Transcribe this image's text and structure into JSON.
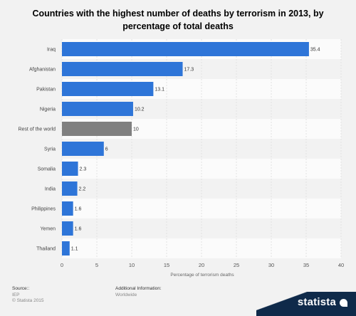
{
  "chart_data": {
    "type": "bar",
    "orientation": "horizontal",
    "title": "Countries with the highest number of deaths by terrorism in 2013, by percentage of total deaths",
    "title_line1": "Countries with the highest number of deaths by terrorism in 2013, by",
    "title_line2": "percentage of total deaths",
    "categories": [
      "Iraq",
      "Afghanistan",
      "Pakistan",
      "Nigeria",
      "Rest of the world",
      "Syria",
      "Somalia",
      "India",
      "Philippines",
      "Yemen",
      "Thailand"
    ],
    "values": [
      35.4,
      17.3,
      13.1,
      10.2,
      10,
      6,
      2.3,
      2.2,
      1.6,
      1.6,
      1.1
    ],
    "value_labels": [
      "35.4",
      "17.3",
      "13.1",
      "10.2",
      "10",
      "6",
      "2.3",
      "2.2",
      "1.6",
      "1.6",
      "1.1"
    ],
    "xlabel": "Percentage of terrorism deaths",
    "xlim": [
      0,
      40
    ],
    "xticks": [
      0,
      5,
      10,
      15,
      20,
      25,
      30,
      35,
      40
    ],
    "grid": true,
    "colors": {
      "default": "#2e75d8",
      "highlight": "#808080",
      "highlight_category": "Rest of the world",
      "band_odd": "#fbfbfb",
      "band_even": "#f2f2f2"
    }
  },
  "footer": {
    "source_label": "Source::",
    "source_value": "IEP",
    "copyright": "© Statista 2015",
    "additional_label": "Additional Information:",
    "additional_value": "Worldwide"
  },
  "brand": {
    "name": "statista"
  }
}
